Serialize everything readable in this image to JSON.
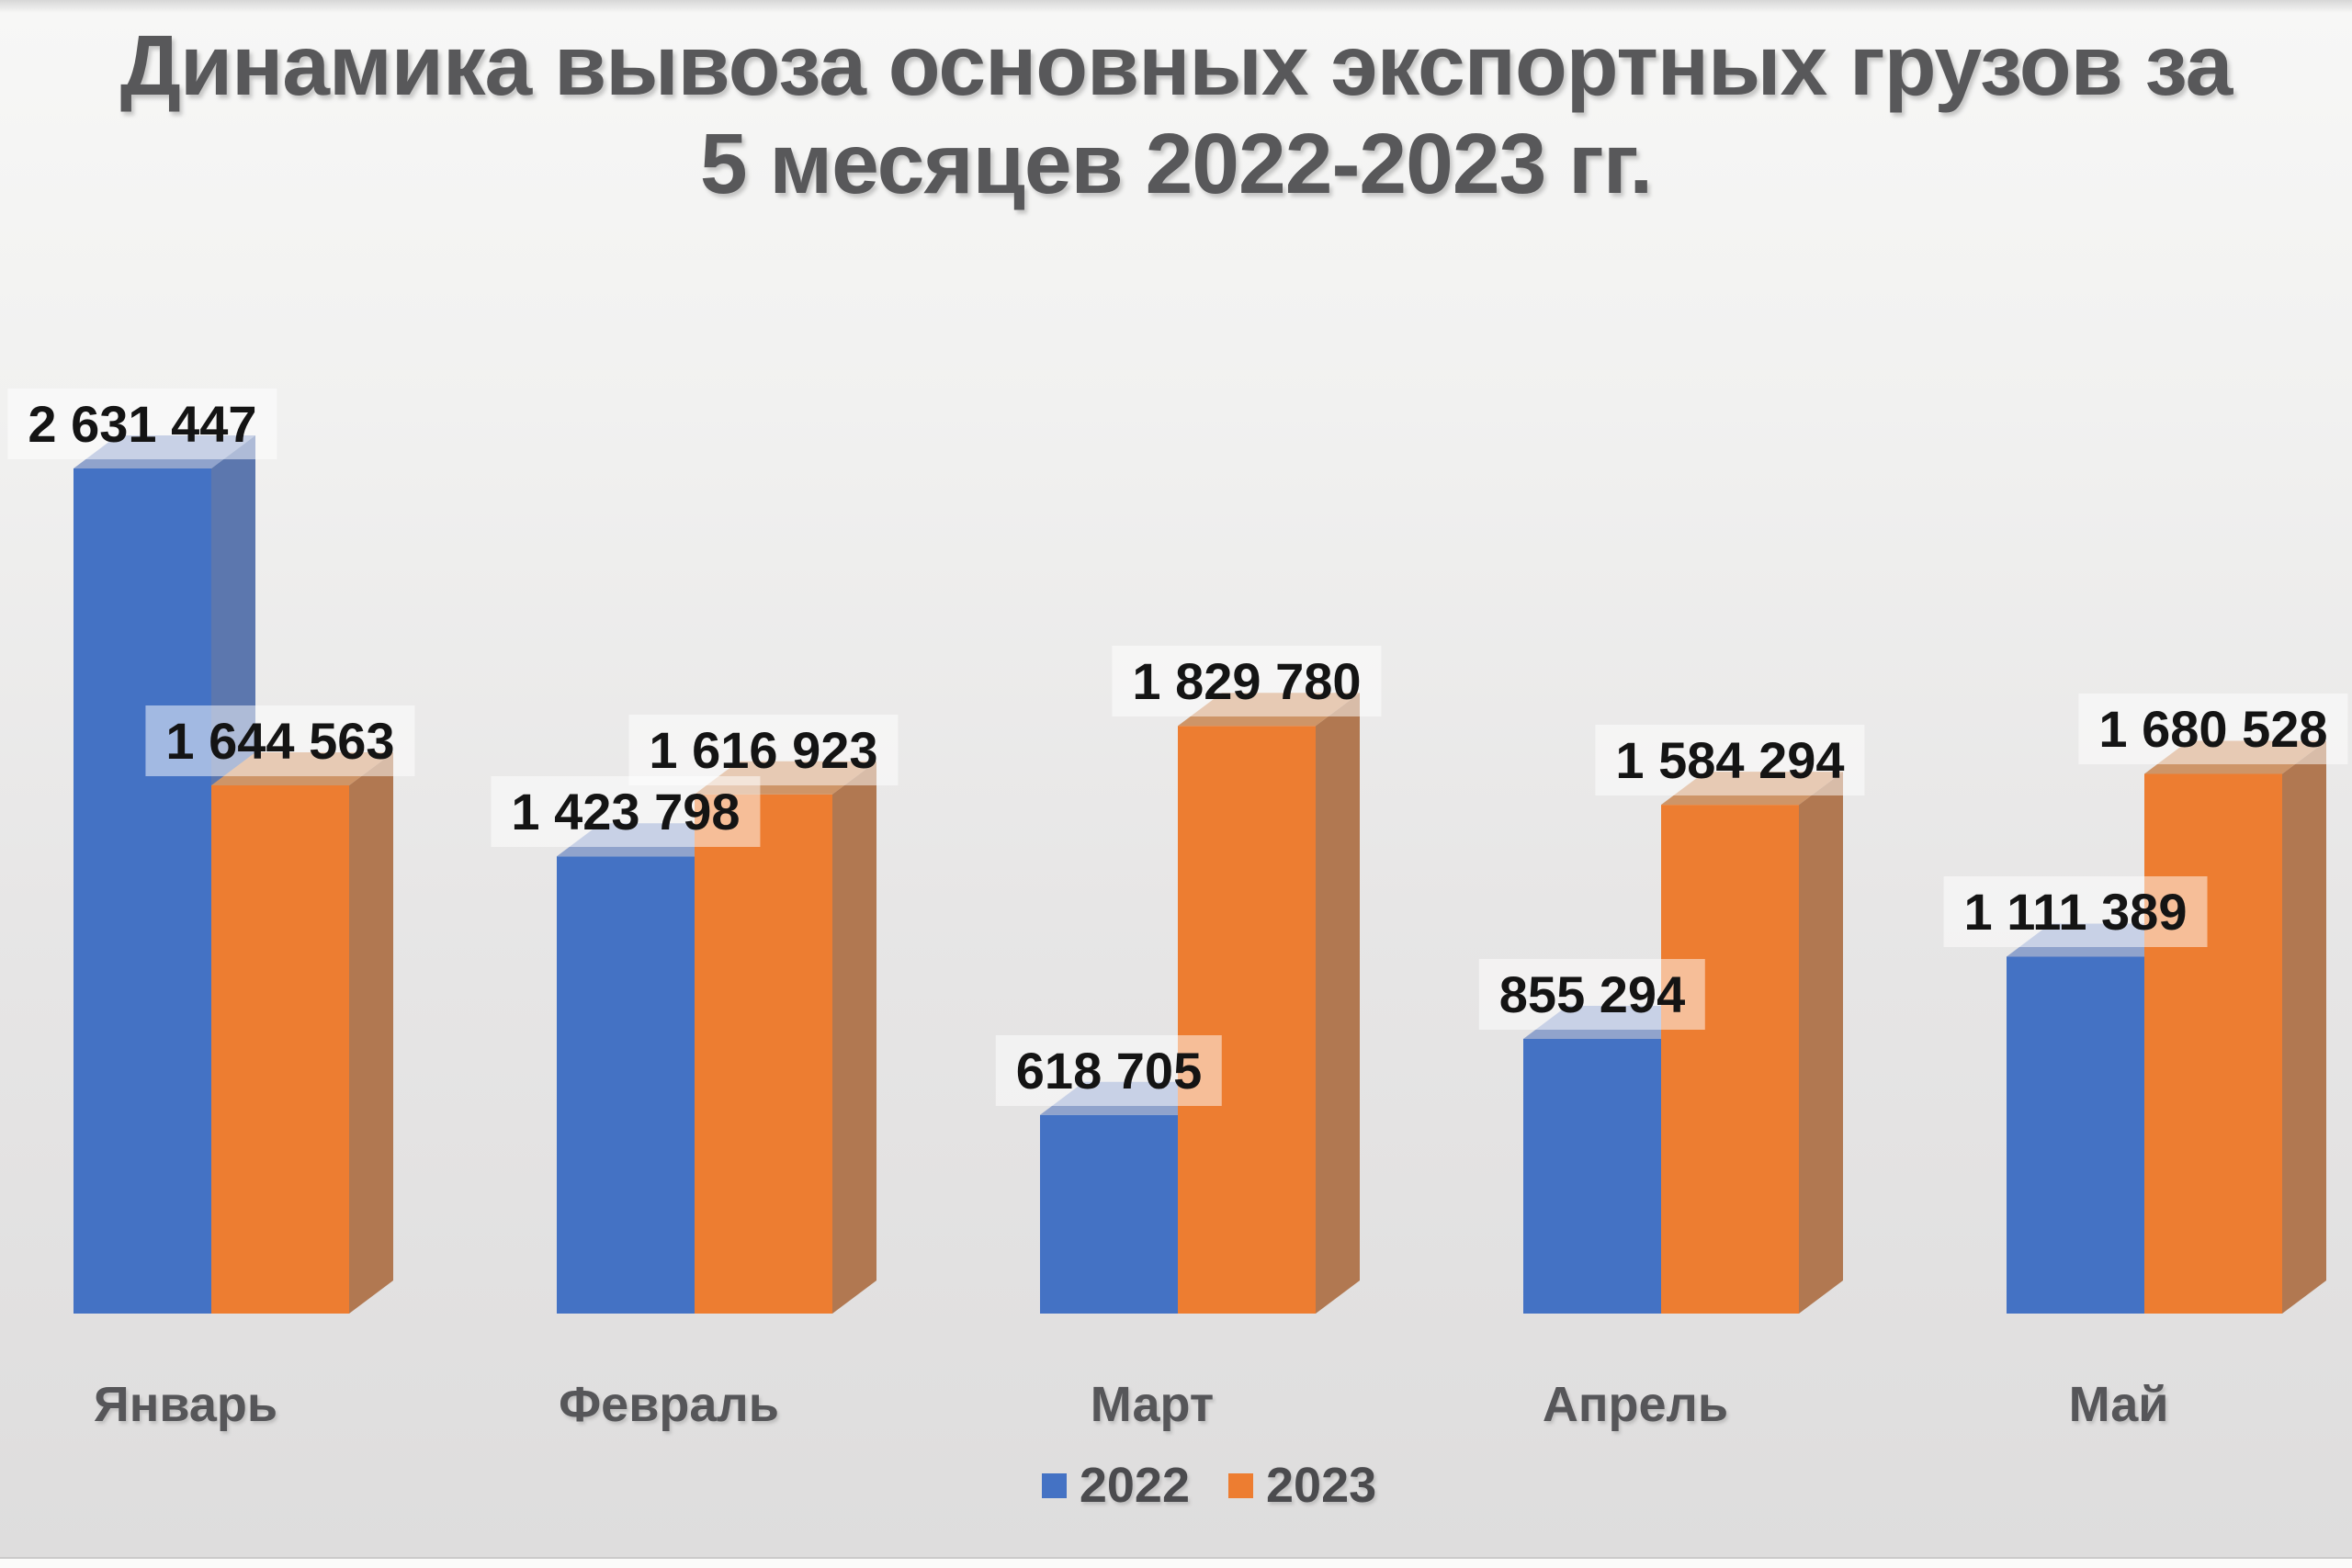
{
  "chart_data": {
    "type": "bar",
    "style": "3d-clustered-column",
    "title": "Динамика вывоза основных экспортных грузов за 5 месяцев 2022-2023 гг.",
    "title_lines": [
      "Динамика вывоза основных экспортных грузов за",
      "5 месяцев 2022-2023 гг."
    ],
    "categories": [
      "Январь",
      "Февраль",
      "Март",
      "Апрель",
      "Май"
    ],
    "series": [
      {
        "name": "2022",
        "color": "#4472C4",
        "color_top": "#90A3CC",
        "color_side": "#5C77AE",
        "values": [
          2631447,
          1423798,
          618705,
          855294,
          1111389
        ],
        "value_labels": [
          "2 631 447",
          "1 423 798",
          "618 705",
          "855 294",
          "1 111 389"
        ]
      },
      {
        "name": "2023",
        "color": "#ED7D31",
        "color_top": "#CE9568",
        "color_side": "#B17851",
        "values": [
          1644563,
          1616923,
          1829780,
          1584294,
          1680528
        ],
        "value_labels": [
          "1 644 563",
          "1 616 923",
          "1 829 780",
          "1 584 294",
          "1 680 528"
        ]
      }
    ],
    "xlabel": "",
    "ylabel": "",
    "ylim": [
      0,
      2700000
    ],
    "grid": false,
    "axes_visible": false,
    "data_labels_visible": true,
    "legend_position": "bottom",
    "title_color": "#58585A",
    "label_text_color": "#141414",
    "category_text_color": "#565659"
  }
}
